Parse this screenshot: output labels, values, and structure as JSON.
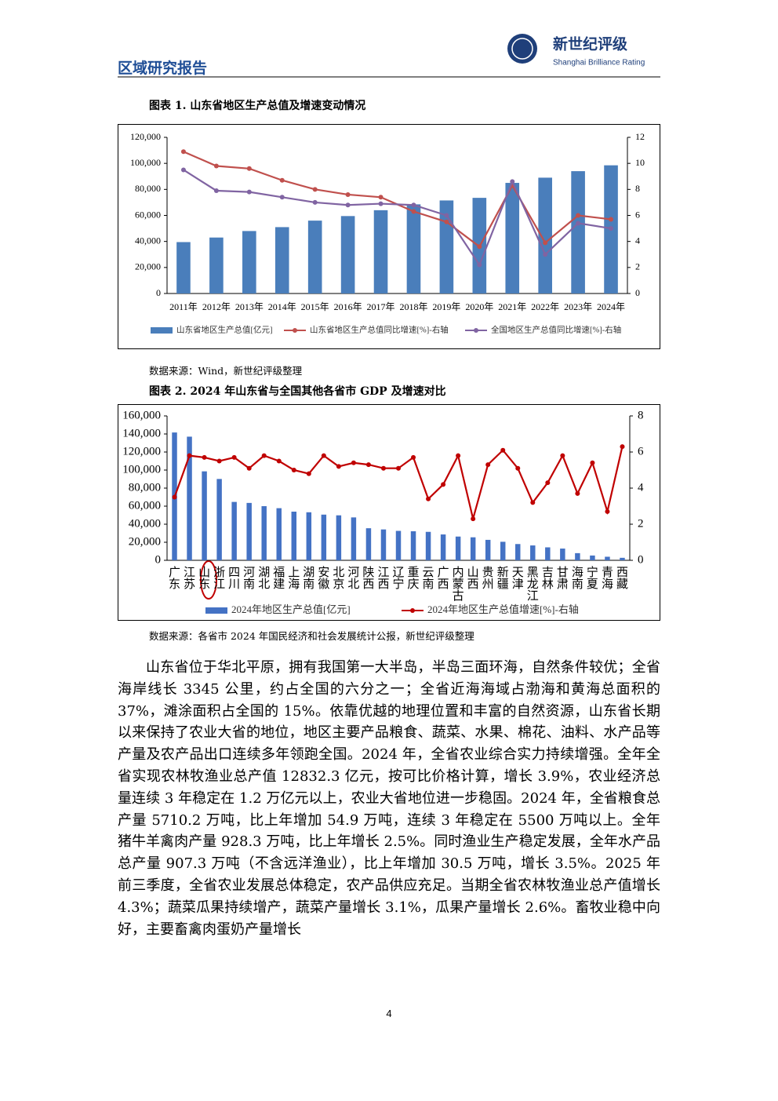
{
  "header": {
    "section": "区域研究报告",
    "brand": "新世纪评级",
    "brand_en": "Shanghai Brilliance Rating"
  },
  "chart_data": [
    {
      "type": "bar",
      "title": "图表 1. 山东省地区生产总值及增速变动情况",
      "source": "数据来源：Wind，新世纪评级整理",
      "categories": [
        "2011年",
        "2012年",
        "2013年",
        "2014年",
        "2015年",
        "2016年",
        "2017年",
        "2018年",
        "2019年",
        "2020年",
        "2021年",
        "2022年",
        "2023年",
        "2024年"
      ],
      "series": [
        {
          "name": "山东省地区生产总值[亿元]",
          "type": "bar",
          "color": "#4a7ebb",
          "values": [
            39500,
            43000,
            48000,
            51000,
            56000,
            59500,
            64000,
            68500,
            71500,
            73500,
            85000,
            89000,
            94000,
            98500
          ]
        },
        {
          "name": "山东省地区生产总值同比增速[%]-右轴",
          "type": "line",
          "axis": "y2",
          "color": "#c0504d",
          "values": [
            10.9,
            9.8,
            9.6,
            8.7,
            8.0,
            7.6,
            7.4,
            6.3,
            5.5,
            3.6,
            8.3,
            3.9,
            6.0,
            5.7
          ]
        },
        {
          "name": "全国地区生产总值同比增速[%]-右轴",
          "type": "line",
          "axis": "y2",
          "color": "#8064a2",
          "values": [
            9.5,
            7.9,
            7.8,
            7.4,
            7.0,
            6.8,
            6.9,
            6.8,
            6.0,
            2.2,
            8.6,
            3.0,
            5.4,
            5.0
          ]
        }
      ],
      "ylim": [
        0,
        120000
      ],
      "yticks": [
        0,
        {
          "value": 20000,
          "label": "20,000"
        },
        {
          "value": 40000,
          "label": "40,000"
        },
        {
          "value": 60000,
          "label": "60,000"
        },
        {
          "value": 80000,
          "label": "80,000"
        },
        {
          "value": 100000,
          "label": "100,000"
        },
        {
          "value": 120000,
          "label": "120,000"
        }
      ],
      "y2lim": [
        0,
        12
      ],
      "y2ticks": [
        0,
        2,
        4,
        6,
        8,
        10,
        12
      ]
    },
    {
      "type": "bar",
      "title": "图表 2. 2024 年山东省与全国其他各省市 GDP 及增速对比",
      "source": "数据来源：各省市 2024 年国民经济和社会发展统计公报，新世纪评级整理",
      "categories": [
        "广东",
        "江苏",
        "山东",
        "浙江",
        "四川",
        "河南",
        "湖北",
        "福建",
        "上海",
        "湖南",
        "安徽",
        "北京",
        "河北",
        "陕西",
        "江西",
        "辽宁",
        "重庆",
        "云南",
        "广西",
        "内蒙古",
        "山西",
        "贵州",
        "新疆",
        "天津",
        "黑龙江",
        "吉林",
        "甘肃",
        "海南",
        "宁夏",
        "青海",
        "西藏"
      ],
      "series": [
        {
          "name": "2024年地区生产总值[亿元]",
          "type": "bar",
          "color": "#4472c4",
          "values": [
            141634,
            137008,
            98566,
            90131,
            64697,
            63590,
            60013,
            57761,
            53927,
            53231,
            50625,
            49843,
            47527,
            35539,
            34203,
            32613,
            32193,
            31534,
            28649,
            26315,
            25494,
            22667,
            20534,
            18024,
            16476,
            14361,
            13003,
            7935,
            5315,
            3951,
            2765
          ]
        },
        {
          "name": "2024年地区生产总值增速[%]-右轴",
          "type": "line",
          "axis": "y2",
          "color": "#c00000",
          "values": [
            3.5,
            5.8,
            5.7,
            5.5,
            5.7,
            5.1,
            5.8,
            5.5,
            5.0,
            4.8,
            5.8,
            5.2,
            5.4,
            5.3,
            5.1,
            5.1,
            5.7,
            3.4,
            4.2,
            5.8,
            2.3,
            5.3,
            6.1,
            5.1,
            3.2,
            4.3,
            5.8,
            3.7,
            5.4,
            2.7,
            6.3
          ]
        }
      ],
      "ylim": [
        0,
        160000
      ],
      "yticks": [
        0,
        {
          "value": 20000,
          "label": "20,000"
        },
        {
          "value": 40000,
          "label": "40,000"
        },
        {
          "value": 60000,
          "label": "60,000"
        },
        {
          "value": 80000,
          "label": "80,000"
        },
        {
          "value": 100000,
          "label": "100,000"
        },
        {
          "value": 120000,
          "label": "120,000"
        },
        {
          "value": 140000,
          "label": "140,000"
        },
        {
          "value": 160000,
          "label": "160,000"
        }
      ],
      "y2lim": [
        0,
        8
      ],
      "y2ticks": [
        0,
        2,
        4,
        6,
        8
      ]
    }
  ],
  "body": {
    "paragraph": "山东省位于华北平原，拥有我国第一大半岛，半岛三面环海，自然条件较优；全省海岸线长 3345 公里，约占全国的六分之一；全省近海海域占渤海和黄海总面积的 37%，滩涂面积占全国的 15%。依靠优越的地理位置和丰富的自然资源，山东省长期以来保持了农业大省的地位，地区主要产品粮食、蔬菜、水果、棉花、油料、水产品等产量及农产品出口连续多年领跑全国。2024 年，全省农业综合实力持续增强。全年全省实现农林牧渔业总产值 12832.3 亿元，按可比价格计算，增长 3.9%，农业经济总量连续 3 年稳定在 1.2 万亿元以上，农业大省地位进一步稳固。2024 年，全省粮食总产量 5710.2 万吨，比上年增加 54.9 万吨，连续 3 年稳定在 5500 万吨以上。全年猪牛羊禽肉产量 928.3 万吨，比上年增长 2.5%。同时渔业生产稳定发展，全年水产品总产量 907.3 万吨（不含远洋渔业），比上年增加 30.5 万吨，增长 3.5%。2025 年前三季度，全省农业发展总体稳定，农产品供应充足。当期全省农林牧渔业总产值增长 4.3%；蔬菜瓜果持续增产，蔬菜产量增长 3.1%，瓜果产量增长 2.6%。畜牧业稳中向好，主要畜禽肉蛋奶产量增长"
  },
  "page_number": "4"
}
